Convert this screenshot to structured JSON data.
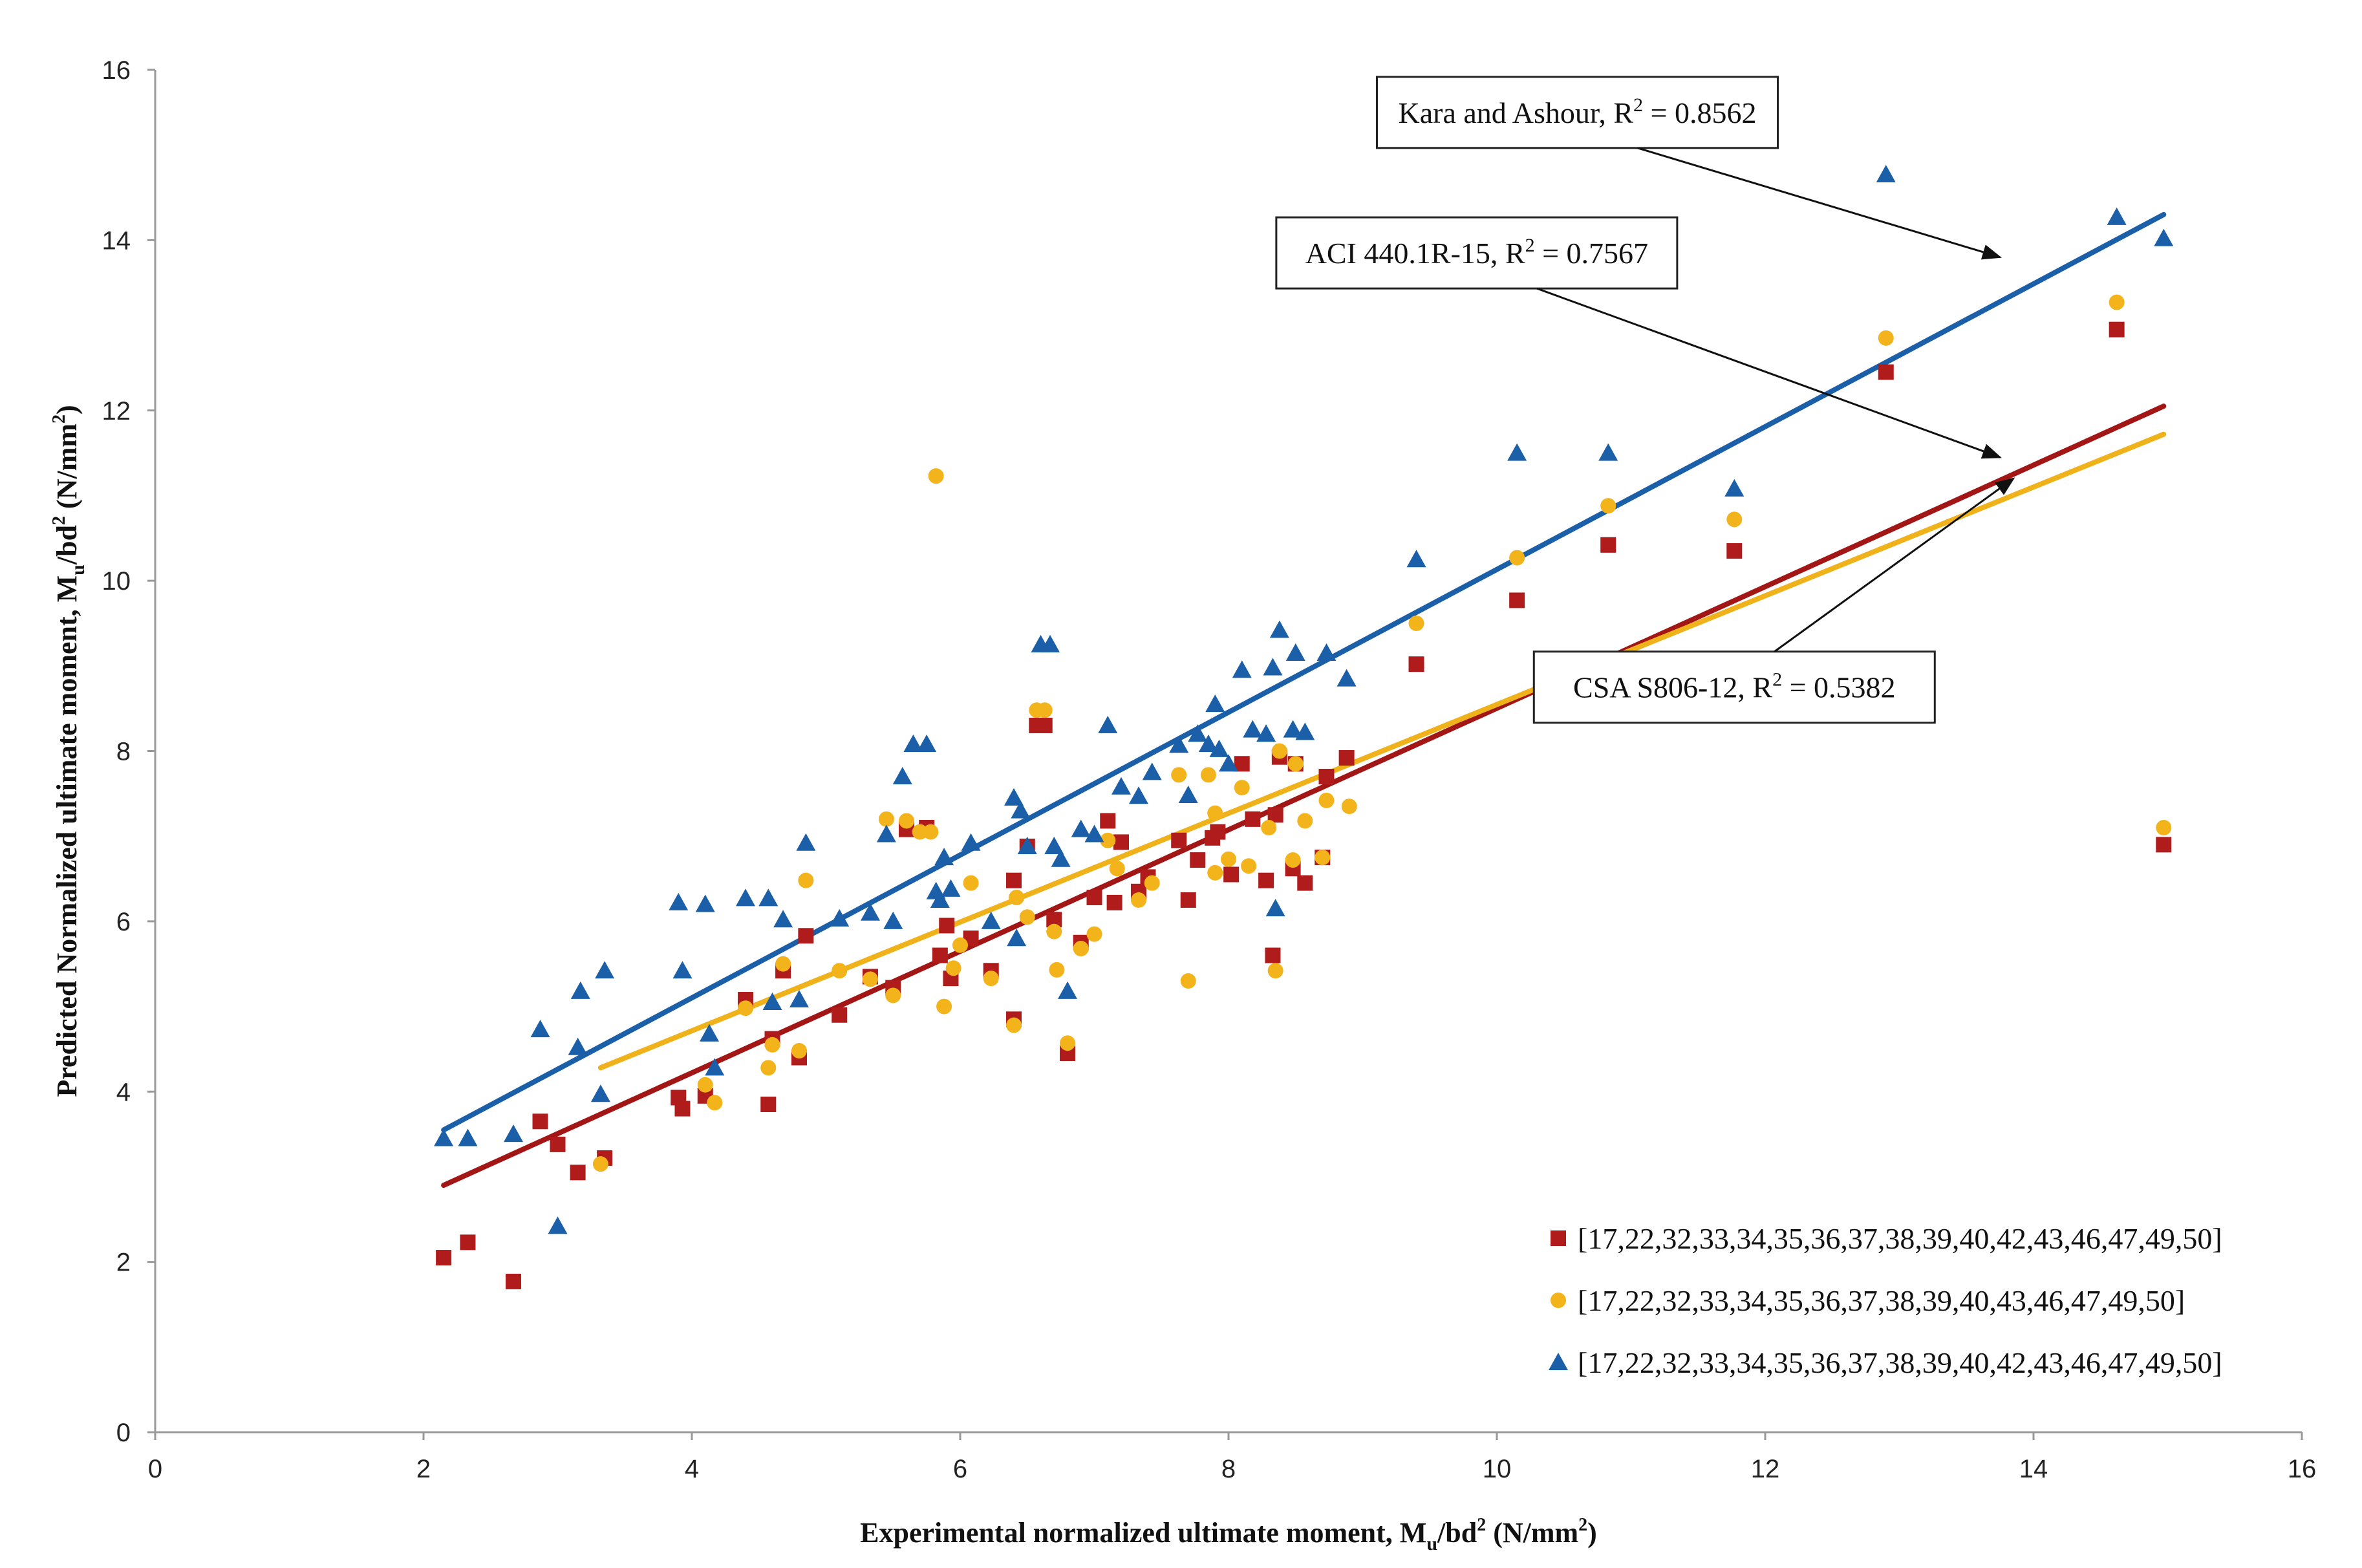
{
  "chart_data": {
    "type": "scatter",
    "title": "",
    "xlabel": "Experimental normalized ultimate moment, M_u/bd² (N/mm²)",
    "ylabel": "Predicted Normalized ultimate moment, M_u/bd² (N/mm²)",
    "xlabel_parts": {
      "pre": "Experimental normalized ultimate moment, M",
      "sub": "u",
      "mid": "/bd",
      "sup": "2",
      "post": " (N/mm",
      "sup2": "2",
      "end": ")"
    },
    "ylabel_parts": {
      "pre": "Predicted Normalized ultimate moment, M",
      "sub": "u",
      "mid": "/bd",
      "sup": "2",
      "post": " (N/mm",
      "sup2": "2",
      "end": ")"
    },
    "xlim": [
      0,
      16
    ],
    "ylim": [
      0,
      16
    ],
    "xticks": [
      0,
      2,
      4,
      6,
      8,
      10,
      12,
      14,
      16
    ],
    "yticks": [
      0,
      2,
      4,
      6,
      8,
      10,
      12,
      14,
      16
    ],
    "grid": false,
    "legend_position": "bottom-right",
    "series": [
      {
        "name": "[17,22,32,33,34,35,36,37,38,39,40,42,43,46,47,49,50]",
        "marker": "square",
        "color": "#b01c1c",
        "points": [
          [
            2.15,
            2.05
          ],
          [
            2.33,
            2.23
          ],
          [
            2.67,
            1.77
          ],
          [
            2.87,
            3.65
          ],
          [
            3.0,
            3.38
          ],
          [
            3.15,
            3.05
          ],
          [
            3.35,
            3.22
          ],
          [
            3.9,
            3.93
          ],
          [
            3.93,
            3.8
          ],
          [
            4.1,
            3.95
          ],
          [
            4.4,
            5.08
          ],
          [
            4.57,
            3.85
          ],
          [
            4.6,
            4.62
          ],
          [
            4.68,
            5.42
          ],
          [
            4.8,
            4.4
          ],
          [
            4.85,
            5.83
          ],
          [
            5.1,
            4.9
          ],
          [
            5.33,
            5.35
          ],
          [
            5.5,
            5.22
          ],
          [
            5.6,
            7.08
          ],
          [
            5.75,
            7.1
          ],
          [
            5.85,
            5.6
          ],
          [
            5.9,
            5.95
          ],
          [
            5.93,
            5.33
          ],
          [
            6.08,
            5.8
          ],
          [
            6.23,
            5.42
          ],
          [
            6.4,
            6.48
          ],
          [
            6.4,
            4.85
          ],
          [
            6.5,
            6.88
          ],
          [
            6.57,
            8.3
          ],
          [
            6.63,
            8.3
          ],
          [
            6.7,
            6.02
          ],
          [
            6.8,
            4.45
          ],
          [
            6.9,
            5.75
          ],
          [
            7.0,
            6.28
          ],
          [
            7.1,
            7.18
          ],
          [
            7.15,
            6.22
          ],
          [
            7.2,
            6.93
          ],
          [
            7.33,
            6.35
          ],
          [
            7.4,
            6.52
          ],
          [
            7.63,
            6.95
          ],
          [
            7.7,
            6.25
          ],
          [
            7.77,
            6.72
          ],
          [
            7.88,
            6.98
          ],
          [
            7.92,
            7.05
          ],
          [
            8.02,
            6.55
          ],
          [
            8.1,
            7.85
          ],
          [
            8.18,
            7.2
          ],
          [
            8.28,
            6.48
          ],
          [
            8.33,
            5.6
          ],
          [
            8.35,
            7.25
          ],
          [
            8.38,
            7.93
          ],
          [
            8.48,
            6.62
          ],
          [
            8.5,
            7.85
          ],
          [
            8.57,
            6.45
          ],
          [
            8.7,
            6.75
          ],
          [
            8.73,
            7.7
          ],
          [
            8.88,
            7.92
          ],
          [
            9.4,
            9.02
          ],
          [
            10.15,
            9.77
          ],
          [
            10.83,
            10.42
          ],
          [
            11.77,
            10.35
          ],
          [
            12.9,
            12.45
          ],
          [
            14.62,
            12.95
          ],
          [
            14.97,
            6.9
          ]
        ]
      },
      {
        "name": "[17,22,32,33,34,35,36,37,38,39,40,43,46,47,49,50]",
        "marker": "circle",
        "color": "#f3b31b",
        "points": [
          [
            3.32,
            3.15
          ],
          [
            4.1,
            4.08
          ],
          [
            4.17,
            3.87
          ],
          [
            4.4,
            4.98
          ],
          [
            4.57,
            4.28
          ],
          [
            4.6,
            4.55
          ],
          [
            4.68,
            5.5
          ],
          [
            4.8,
            4.48
          ],
          [
            4.85,
            6.48
          ],
          [
            5.1,
            5.42
          ],
          [
            5.33,
            5.32
          ],
          [
            5.45,
            7.2
          ],
          [
            5.5,
            5.13
          ],
          [
            5.6,
            7.18
          ],
          [
            5.7,
            7.05
          ],
          [
            5.78,
            7.05
          ],
          [
            5.82,
            11.23
          ],
          [
            5.88,
            5.0
          ],
          [
            5.95,
            5.45
          ],
          [
            6.0,
            5.72
          ],
          [
            6.08,
            6.45
          ],
          [
            6.23,
            5.33
          ],
          [
            6.4,
            4.78
          ],
          [
            6.42,
            6.28
          ],
          [
            6.5,
            6.05
          ],
          [
            6.57,
            8.48
          ],
          [
            6.63,
            8.48
          ],
          [
            6.7,
            5.88
          ],
          [
            6.72,
            5.43
          ],
          [
            6.8,
            4.57
          ],
          [
            6.9,
            5.68
          ],
          [
            7.0,
            5.85
          ],
          [
            7.1,
            6.95
          ],
          [
            7.17,
            6.62
          ],
          [
            7.33,
            6.25
          ],
          [
            7.43,
            6.45
          ],
          [
            7.63,
            7.72
          ],
          [
            7.7,
            5.3
          ],
          [
            7.85,
            7.72
          ],
          [
            7.9,
            6.57
          ],
          [
            7.9,
            7.27
          ],
          [
            8.0,
            6.73
          ],
          [
            8.1,
            7.57
          ],
          [
            8.15,
            6.65
          ],
          [
            8.3,
            7.1
          ],
          [
            8.35,
            5.42
          ],
          [
            8.38,
            8.0
          ],
          [
            8.48,
            6.72
          ],
          [
            8.5,
            7.85
          ],
          [
            8.57,
            7.18
          ],
          [
            8.7,
            6.75
          ],
          [
            8.73,
            7.42
          ],
          [
            8.9,
            7.35
          ],
          [
            9.4,
            9.5
          ],
          [
            10.15,
            10.27
          ],
          [
            10.83,
            10.88
          ],
          [
            11.77,
            10.72
          ],
          [
            12.9,
            12.85
          ],
          [
            14.62,
            13.27
          ],
          [
            14.97,
            7.1
          ]
        ]
      },
      {
        "name": "[17,22,32,33,34,35,36,37,38,39,40,42,43,46,47,49,50]",
        "marker": "triangle",
        "color": "#1a5fa8",
        "points": [
          [
            2.15,
            3.45
          ],
          [
            2.33,
            3.45
          ],
          [
            2.67,
            3.5
          ],
          [
            2.87,
            4.73
          ],
          [
            3.0,
            2.42
          ],
          [
            3.15,
            4.52
          ],
          [
            3.17,
            5.18
          ],
          [
            3.32,
            3.97
          ],
          [
            3.35,
            5.42
          ],
          [
            3.9,
            6.22
          ],
          [
            3.93,
            5.42
          ],
          [
            4.1,
            6.2
          ],
          [
            4.13,
            4.68
          ],
          [
            4.17,
            4.28
          ],
          [
            4.4,
            6.27
          ],
          [
            4.57,
            6.27
          ],
          [
            4.6,
            5.05
          ],
          [
            4.68,
            6.02
          ],
          [
            4.8,
            5.08
          ],
          [
            4.85,
            6.92
          ],
          [
            5.1,
            6.03
          ],
          [
            5.33,
            6.1
          ],
          [
            5.45,
            7.02
          ],
          [
            5.5,
            6.0
          ],
          [
            5.57,
            7.7
          ],
          [
            5.65,
            8.08
          ],
          [
            5.75,
            8.08
          ],
          [
            5.82,
            6.35
          ],
          [
            5.85,
            6.25
          ],
          [
            5.88,
            6.75
          ],
          [
            5.93,
            6.38
          ],
          [
            6.08,
            6.92
          ],
          [
            6.23,
            6.0
          ],
          [
            6.4,
            7.45
          ],
          [
            6.42,
            5.8
          ],
          [
            6.45,
            7.3
          ],
          [
            6.5,
            6.88
          ],
          [
            6.6,
            9.25
          ],
          [
            6.67,
            9.25
          ],
          [
            6.7,
            6.88
          ],
          [
            6.75,
            6.73
          ],
          [
            6.8,
            5.18
          ],
          [
            6.9,
            7.08
          ],
          [
            7.0,
            7.02
          ],
          [
            7.1,
            8.3
          ],
          [
            7.2,
            7.58
          ],
          [
            7.33,
            7.47
          ],
          [
            7.43,
            7.75
          ],
          [
            7.63,
            8.07
          ],
          [
            7.7,
            7.48
          ],
          [
            7.77,
            8.2
          ],
          [
            7.85,
            8.08
          ],
          [
            7.9,
            8.55
          ],
          [
            7.93,
            8.02
          ],
          [
            8.0,
            7.85
          ],
          [
            8.1,
            8.95
          ],
          [
            8.18,
            8.25
          ],
          [
            8.28,
            8.2
          ],
          [
            8.33,
            8.98
          ],
          [
            8.35,
            6.15
          ],
          [
            8.38,
            9.42
          ],
          [
            8.48,
            8.25
          ],
          [
            8.5,
            9.15
          ],
          [
            8.57,
            8.22
          ],
          [
            8.73,
            9.15
          ],
          [
            8.88,
            8.85
          ],
          [
            9.4,
            10.25
          ],
          [
            10.15,
            11.5
          ],
          [
            10.83,
            11.5
          ],
          [
            11.77,
            11.08
          ],
          [
            12.9,
            14.77
          ],
          [
            14.62,
            14.27
          ],
          [
            14.97,
            14.02
          ]
        ]
      }
    ],
    "trendlines": [
      {
        "label": "Kara and Ashour, R",
        "label_sup": "2",
        "label_tail": " = 0.8562",
        "color": "#1a5fa8",
        "x": [
          2.15,
          14.97
        ],
        "y": [
          3.55,
          14.3
        ],
        "box_anchor": [
          10.6,
          15.5
        ],
        "arrow_to": [
          13.75,
          13.8
        ]
      },
      {
        "label": "ACI 440.1R-15, R",
        "label_sup": "2",
        "label_tail": " = 0.7567",
        "color": "#a31616",
        "x": [
          2.15,
          14.97
        ],
        "y": [
          2.9,
          12.05
        ],
        "box_anchor": [
          9.85,
          13.85
        ],
        "arrow_to": [
          13.75,
          11.45
        ]
      },
      {
        "label": "CSA S806-12, R",
        "label_sup": "2",
        "label_tail": " = 0.5382",
        "color": "#f0b21a",
        "x": [
          3.32,
          14.97
        ],
        "y": [
          4.28,
          11.72
        ],
        "box_anchor": [
          11.77,
          8.75
        ],
        "arrow_to": [
          13.85,
          11.2
        ]
      }
    ]
  }
}
